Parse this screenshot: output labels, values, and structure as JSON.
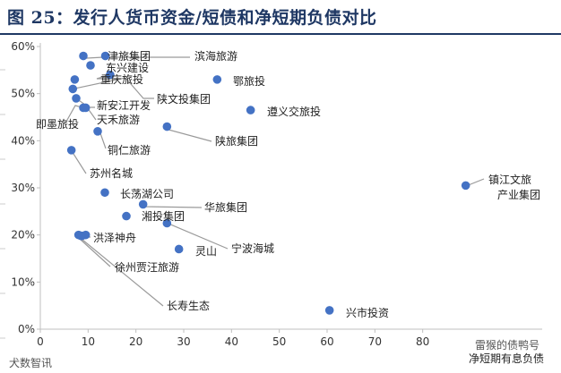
{
  "figure_title": "图 25：发行人货币资金/短债和净短期负债对比",
  "watermark_left": "犬数智讯",
  "watermark_right": "雷猴的债鸭号",
  "colors": {
    "point": "#4472c4",
    "leader": "#9a9a9a",
    "title": "#1f3864",
    "axis": "#bfbfbf"
  },
  "chart_data": {
    "type": "scatter",
    "xlabel": "净短期有息负债",
    "ylabel": "",
    "xlim": [
      0,
      90
    ],
    "ylim": [
      0,
      0.6
    ],
    "xticks": [
      0,
      10,
      20,
      30,
      40,
      50,
      60,
      70,
      80
    ],
    "yticks": [
      0,
      0.1,
      0.2,
      0.3,
      0.4,
      0.5,
      0.6
    ],
    "ytick_labels": [
      "0%",
      "10%",
      "20%",
      "30%",
      "40%",
      "50%",
      "60%"
    ],
    "grid": false,
    "points": [
      {
        "name": "津旅集团",
        "x": 9.0,
        "y": 0.58
      },
      {
        "name": "滨海旅游",
        "x": 13.6,
        "y": 0.58
      },
      {
        "name": "东兴建设",
        "x": 10.5,
        "y": 0.56
      },
      {
        "name": "重庆旅投",
        "x": 14.6,
        "y": 0.54
      },
      {
        "name": "鄂旅投",
        "x": 37.0,
        "y": 0.53
      },
      {
        "name": "",
        "x": 7.2,
        "y": 0.53
      },
      {
        "name": "陕文投集团",
        "x": 6.8,
        "y": 0.51
      },
      {
        "name": "新安江开发",
        "x": 7.5,
        "y": 0.49
      },
      {
        "name": "天禾旅游",
        "x": 9.5,
        "y": 0.47
      },
      {
        "name": "即墨旅投",
        "x": 9.0,
        "y": 0.47
      },
      {
        "name": "遵义交旅投",
        "x": 44.0,
        "y": 0.465
      },
      {
        "name": "铜仁旅游",
        "x": 12.0,
        "y": 0.42
      },
      {
        "name": "陕旅集团",
        "x": 26.5,
        "y": 0.43
      },
      {
        "name": "苏州名城",
        "x": 6.5,
        "y": 0.38
      },
      {
        "name": "镇江文旅产业集团",
        "x": 89.0,
        "y": 0.305
      },
      {
        "name": "长荡湖公司",
        "x": 13.5,
        "y": 0.29
      },
      {
        "name": "华旅集团",
        "x": 21.5,
        "y": 0.265
      },
      {
        "name": "湘投集团",
        "x": 18.0,
        "y": 0.24
      },
      {
        "name": "宁波海城",
        "x": 26.5,
        "y": 0.225
      },
      {
        "name": "洪泽神舟",
        "x": 8.5,
        "y": 0.198
      },
      {
        "name": "",
        "x": 9.5,
        "y": 0.2
      },
      {
        "name": "灵山",
        "x": 29.0,
        "y": 0.17
      },
      {
        "name": "徐州贾汪旅游",
        "x": 8.0,
        "y": 0.2
      },
      {
        "name": "长寿生态",
        "x": 8.7,
        "y": 0.198
      },
      {
        "name": "兴市投资",
        "x": 60.5,
        "y": 0.04
      }
    ]
  }
}
